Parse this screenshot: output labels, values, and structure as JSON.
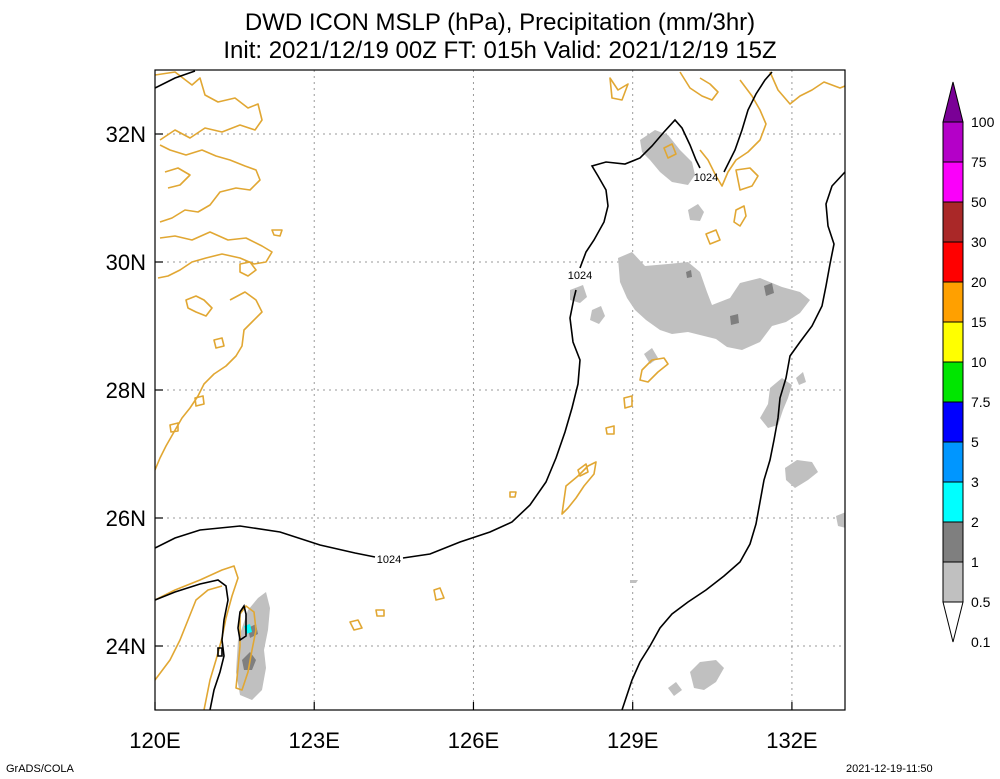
{
  "header": {
    "title_line1": "DWD ICON MSLP (hPa), Precipitation (mm/3hr)",
    "title_line2": "Init: 2021/12/19 00Z  FT: 015h  Valid: 2021/12/19 15Z"
  },
  "map": {
    "lon_range": [
      120,
      133
    ],
    "lat_range": [
      23,
      33
    ],
    "lon_ticks": [
      {
        "value": 120,
        "label": "120E"
      },
      {
        "value": 123,
        "label": "123E"
      },
      {
        "value": 126,
        "label": "126E"
      },
      {
        "value": 129,
        "label": "129E"
      },
      {
        "value": 132,
        "label": "132E"
      }
    ],
    "lat_ticks": [
      {
        "value": 24,
        "label": "24N"
      },
      {
        "value": 26,
        "label": "26N"
      },
      {
        "value": 28,
        "label": "28N"
      },
      {
        "value": 30,
        "label": "30N"
      },
      {
        "value": 32,
        "label": "32N"
      }
    ],
    "grid": true,
    "isobar_labels": [
      "1024",
      "1024",
      "1024"
    ],
    "colors": {
      "coastline": "#e1a733",
      "isobar": "#000000",
      "grid": "#9a9a9a"
    }
  },
  "colorbar": {
    "labels": [
      "100",
      "75",
      "50",
      "30",
      "20",
      "15",
      "10",
      "7.5",
      "5",
      "3",
      "2",
      "1",
      "0.5",
      "0.1"
    ],
    "colors": [
      "#7a0096",
      "#b400c8",
      "#fa00fa",
      "#aa2828",
      "#ff0000",
      "#ffa000",
      "#ffff00",
      "#00e600",
      "#0000ff",
      "#0096ff",
      "#00ffff",
      "#7f7f7f",
      "#c0c0c0",
      "#ffffff"
    ]
  },
  "footer": {
    "left": "GrADS/COLA",
    "right": "2021-12-19-11:50"
  }
}
